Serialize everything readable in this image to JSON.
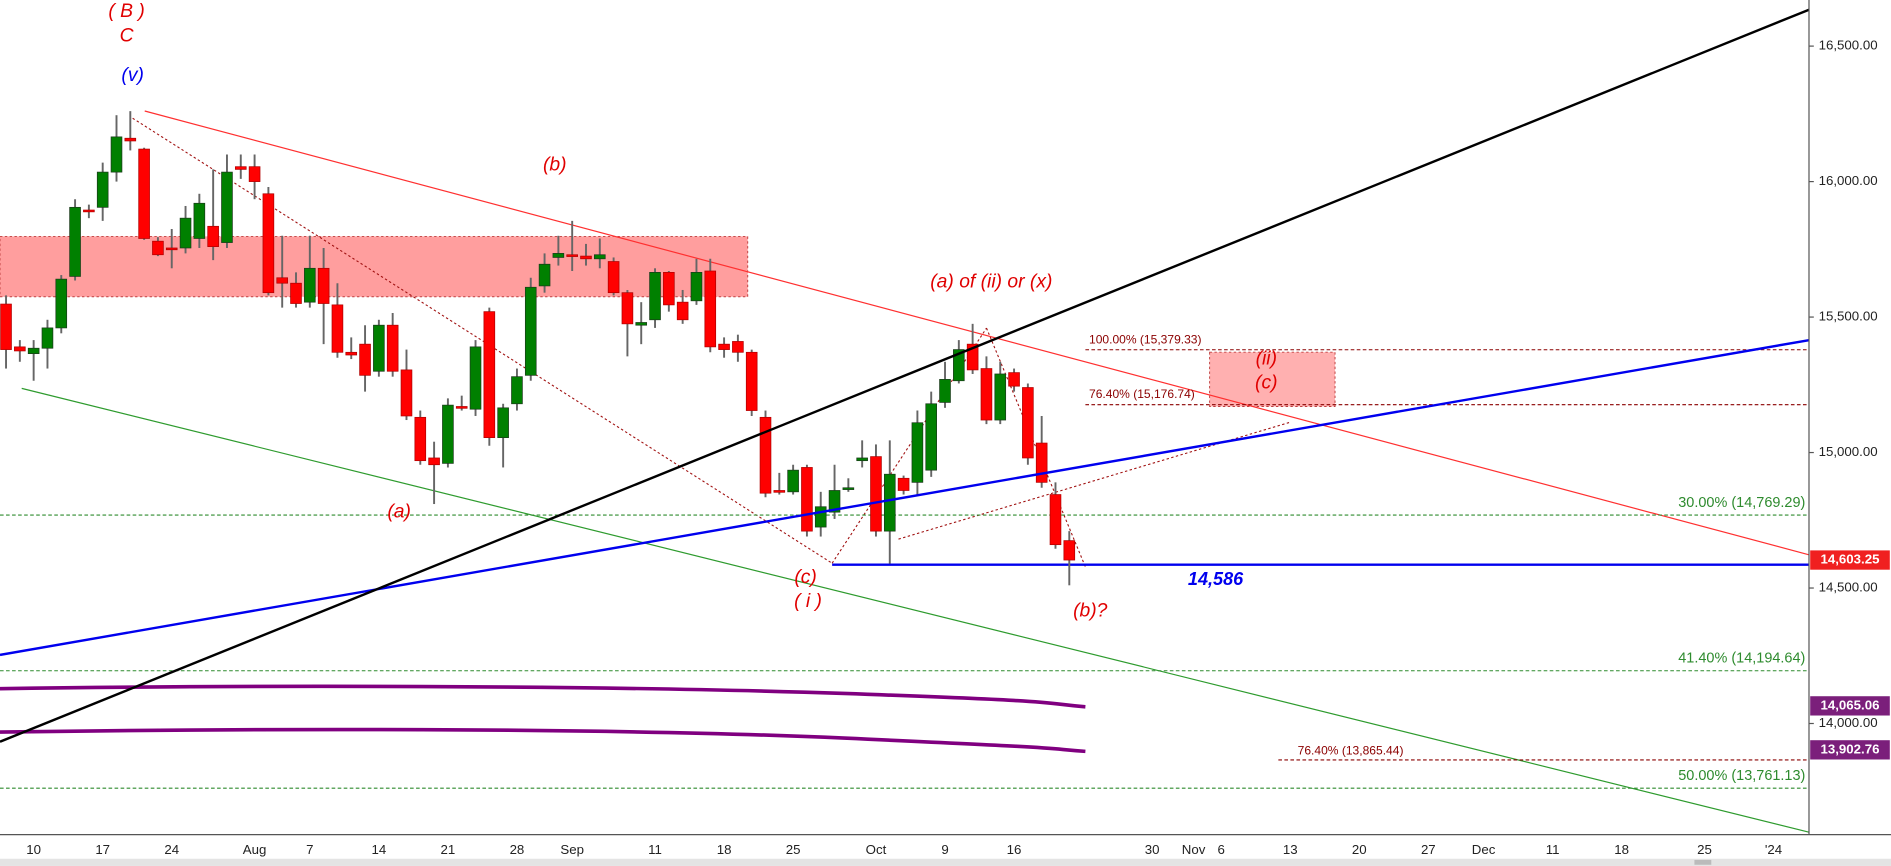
{
  "chart_data": {
    "type": "candlestick",
    "categories": [
      null,
      null,
      "10",
      null,
      null,
      null,
      null,
      "17",
      null,
      null,
      null,
      null,
      "24",
      null,
      null,
      null,
      null,
      null,
      "Aug",
      null,
      null,
      null,
      "7",
      null,
      null,
      null,
      null,
      "14",
      null,
      null,
      null,
      null,
      "21",
      null,
      null,
      null,
      null,
      "28",
      null,
      null,
      null,
      "Sep",
      null,
      null,
      null,
      null,
      null,
      "11",
      null,
      null,
      null,
      null,
      "18",
      null,
      null,
      null,
      null,
      "25",
      null,
      null,
      null,
      null,
      null,
      "Oct",
      null,
      null,
      null,
      null,
      "9",
      null,
      null,
      null,
      null,
      "16",
      null,
      null,
      null,
      null,
      null,
      null,
      null,
      null,
      null,
      "30",
      null,
      null,
      "Nov",
      null,
      "6",
      null,
      null,
      null,
      null,
      "13",
      null,
      null,
      null,
      null,
      "20",
      null,
      null,
      null,
      null,
      "27",
      null,
      null,
      null,
      "Dec",
      null,
      null,
      null,
      null,
      "11",
      null,
      null,
      null,
      null,
      "18",
      null,
      null,
      null,
      null,
      null,
      "25",
      null,
      null,
      null,
      null,
      "'24",
      null,
      null
    ],
    "open": [
      15548,
      15390,
      15365,
      15385,
      15460,
      15650,
      15895,
      15905,
      16035,
      16160,
      16120,
      15780,
      15755,
      15755,
      15790,
      15835,
      15775,
      16055,
      16055,
      15955,
      15645,
      15625,
      15555,
      15680,
      15545,
      15370,
      15400,
      15300,
      15470,
      15305,
      15130,
      14980,
      14960,
      15170,
      15160,
      15520,
      15055,
      15180,
      15285,
      15615,
      15720,
      15730,
      15725,
      15715,
      15705,
      15590,
      15470,
      15490,
      15665,
      15555,
      15560,
      15670,
      15400,
      15410,
      15370,
      15130,
      14860,
      14855,
      14945,
      14725,
      14780,
      14865,
      14970,
      14985,
      14710,
      14905,
      14890,
      14935,
      15185,
      15265,
      15400,
      15310,
      15120,
      15295,
      15240,
      15035,
      14845,
      14675,
      null,
      null,
      null,
      null,
      null,
      null,
      null,
      null,
      null,
      null,
      null,
      null,
      null,
      null,
      null,
      null,
      null,
      null,
      null,
      null,
      null,
      null,
      null,
      null,
      null,
      null,
      null,
      null,
      null,
      null,
      null,
      null,
      null,
      null,
      null,
      null,
      null,
      null,
      null,
      null,
      null,
      null,
      null,
      null,
      null,
      null,
      null,
      null,
      null,
      null,
      null,
      null,
      null
    ],
    "high": [
      15580,
      15415,
      15415,
      15490,
      15655,
      15935,
      15915,
      16070,
      16245,
      16260,
      16125,
      15795,
      15825,
      15910,
      15955,
      16045,
      16100,
      16100,
      16100,
      15980,
      15800,
      15665,
      15800,
      15755,
      15625,
      15425,
      15470,
      15490,
      15515,
      15380,
      15155,
      15040,
      15200,
      15210,
      15415,
      15535,
      15180,
      15310,
      15645,
      15735,
      15800,
      15855,
      15770,
      15790,
      15720,
      15600,
      15555,
      15680,
      15670,
      15600,
      15715,
      15715,
      15425,
      15435,
      15380,
      15155,
      14925,
      14955,
      14955,
      14855,
      14955,
      14905,
      15045,
      15030,
      15045,
      14915,
      15155,
      15225,
      15335,
      15415,
      15475,
      15355,
      15335,
      15310,
      15255,
      15135,
      14890,
      14710,
      null,
      null,
      null,
      null,
      null,
      null,
      null,
      null,
      null,
      null,
      null,
      null,
      null,
      null,
      null,
      null,
      null,
      null,
      null,
      null,
      null,
      null,
      null,
      null,
      null,
      null,
      null,
      null,
      null,
      null,
      null,
      null,
      null,
      null,
      null,
      null,
      null,
      null,
      null,
      null,
      null,
      null,
      null,
      null,
      null,
      null,
      null,
      null,
      null,
      null,
      null,
      null,
      null
    ],
    "low": [
      15310,
      15335,
      15265,
      15310,
      15440,
      15635,
      15865,
      15855,
      16000,
      16115,
      15785,
      15725,
      15680,
      15735,
      15755,
      15710,
      15755,
      16010,
      15935,
      15580,
      15535,
      15535,
      15535,
      15400,
      15350,
      15345,
      15225,
      15280,
      15280,
      15120,
      14955,
      14810,
      14945,
      15155,
      15135,
      15025,
      14945,
      15155,
      15265,
      15590,
      15690,
      15670,
      15690,
      15680,
      15580,
      15355,
      15400,
      15460,
      15520,
      15475,
      15545,
      15370,
      15350,
      15335,
      15135,
      14835,
      14845,
      14845,
      14690,
      14690,
      14755,
      14855,
      14945,
      14690,
      14590,
      14845,
      14845,
      14910,
      15165,
      15255,
      15290,
      15105,
      15105,
      15225,
      14955,
      14870,
      14645,
      14510,
      null,
      null,
      null,
      null,
      null,
      null,
      null,
      null,
      null,
      null,
      null,
      null,
      null,
      null,
      null,
      null,
      null,
      null,
      null,
      null,
      null,
      null,
      null,
      null,
      null,
      null,
      null,
      null,
      null,
      null,
      null,
      null,
      null,
      null,
      null,
      null,
      null,
      null,
      null,
      null,
      null,
      null,
      null,
      null,
      null,
      null,
      null,
      null,
      null,
      null,
      null,
      null,
      null
    ],
    "close": [
      15380,
      15375,
      15385,
      15460,
      15640,
      15905,
      15890,
      16035,
      16165,
      16150,
      15790,
      15730,
      15750,
      15865,
      15920,
      15760,
      16035,
      16045,
      16000,
      15590,
      15625,
      15550,
      15680,
      15550,
      15370,
      15360,
      15285,
      15470,
      15300,
      15135,
      14970,
      14955,
      15175,
      15165,
      15390,
      15055,
      15165,
      15280,
      15610,
      15695,
      15735,
      15725,
      15715,
      15730,
      15590,
      15475,
      15480,
      15665,
      15545,
      15490,
      15665,
      15390,
      15380,
      15370,
      15155,
      14850,
      14855,
      14935,
      14710,
      14800,
      14860,
      14870,
      14980,
      14710,
      14920,
      14860,
      15110,
      15180,
      15270,
      15380,
      15305,
      15120,
      15290,
      15245,
      14980,
      14890,
      14660,
      14603.25,
      null,
      null,
      null,
      null,
      null,
      null,
      null,
      null,
      null,
      null,
      null,
      null,
      null,
      null,
      null,
      null,
      null,
      null,
      null,
      null,
      null,
      null,
      null,
      null,
      null,
      null,
      null,
      null,
      null,
      null,
      null,
      null,
      null,
      null,
      null,
      null,
      null,
      null,
      null,
      null,
      null,
      null,
      null,
      null,
      null,
      null,
      null,
      null,
      null,
      null,
      null,
      null,
      null
    ],
    "up_color": "#008000",
    "down_color": "#ff0000",
    "ylim": [
      13590,
      16670
    ],
    "yticks": [
      {
        "value": 14000,
        "label": "14,000.00"
      },
      {
        "value": 14500,
        "label": "14,500.00"
      },
      {
        "value": 15000,
        "label": "15,000.00"
      },
      {
        "value": 15500,
        "label": "15,500.00"
      },
      {
        "value": 16000,
        "label": "16,000.00"
      },
      {
        "value": 16500,
        "label": "16,500.00"
      }
    ],
    "levels": [
      {
        "value": 15379.33,
        "label": "100.00% (15,379.33)",
        "color": "#8b0000"
      },
      {
        "value": 15176.74,
        "label": "76.40% (15,176.74)",
        "color": "#8b0000"
      },
      {
        "value": 14769.29,
        "label": "30.00% (14,769.29)",
        "color": "#2e8b2e"
      },
      {
        "value": 14586,
        "label": "14,586",
        "color": "#0000ee"
      },
      {
        "value": 14194.64,
        "label": "41.40% (14,194.64)",
        "color": "#2e8b2e"
      },
      {
        "value": 13865.44,
        "label": "76.40% (13,865.44)",
        "color": "#8b0000"
      },
      {
        "value": 13761.13,
        "label": "50.00% (13,761.13)",
        "color": "#2e8b2e"
      }
    ],
    "price_tags": [
      {
        "value": 14603.25,
        "label": "14,603.25",
        "color": "#f02020"
      },
      {
        "value": 14065.06,
        "label": "14,065.06",
        "color": "#7b1f7b"
      },
      {
        "value": 13902.76,
        "label": "13,902.76",
        "color": "#7b1f7b"
      }
    ],
    "annotations": [
      {
        "text": "( B )",
        "color": "#e00000"
      },
      {
        "text": "C",
        "color": "#e00000"
      },
      {
        "text": "(v)",
        "color": "#0000ee"
      },
      {
        "text": "(b)",
        "color": "#e00000"
      },
      {
        "text": "(a)",
        "color": "#e00000"
      },
      {
        "text": "(c)",
        "color": "#e00000"
      },
      {
        "text": "( i )",
        "color": "#e00000"
      },
      {
        "text": "(a) of (ii) or (x)",
        "color": "#e00000"
      },
      {
        "text": "(b)?",
        "color": "#e00000"
      },
      {
        "text": "(ii)",
        "color": "#e00000"
      },
      {
        "text": "(c)",
        "color": "#e00000"
      }
    ]
  }
}
